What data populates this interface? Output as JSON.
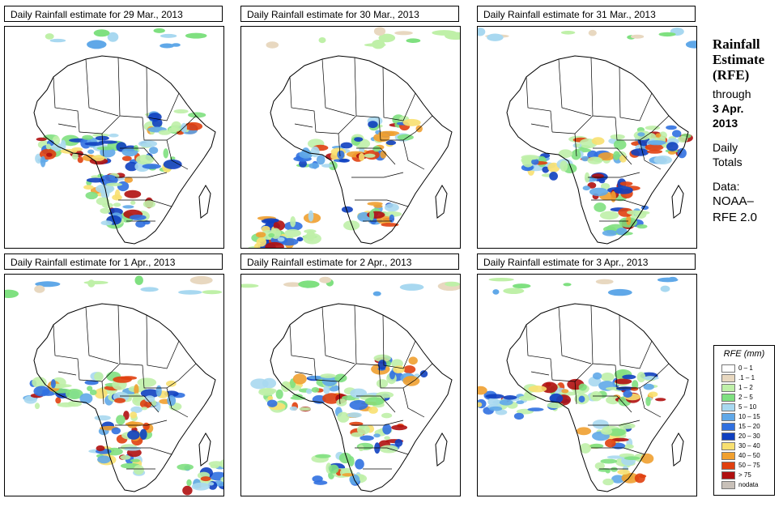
{
  "panels": [
    {
      "title": "Daily Rainfall estimate for  29 Mar., 2013"
    },
    {
      "title": "Daily Rainfall estimate for  30 Mar., 2013"
    },
    {
      "title": "Daily Rainfall estimate for  31 Mar., 2013"
    },
    {
      "title": "Daily Rainfall estimate for  1 Apr., 2013"
    },
    {
      "title": "Daily Rainfall estimate for  2 Apr., 2013"
    },
    {
      "title": "Daily Rainfall estimate for  3 Apr., 2013"
    }
  ],
  "side": {
    "title_1": "Rainfall",
    "title_2": "Estimate",
    "title_3": "(RFE)",
    "through": "through",
    "date_1": "3 Apr.",
    "date_2": "2013",
    "daily": "Daily",
    "totals": "Totals",
    "data_label": "Data:",
    "source_1": "NOAA–",
    "source_2": "RFE 2.0"
  },
  "legend": {
    "title": "RFE (mm)",
    "items": [
      {
        "label": "0 – 1",
        "color": "#ffffff"
      },
      {
        "label": ".1 – 1",
        "color": "#e8d8c0"
      },
      {
        "label": "1 – 2",
        "color": "#bff0a8"
      },
      {
        "label": "2 – 5",
        "color": "#7fe080"
      },
      {
        "label": "5 – 10",
        "color": "#a8d8f0"
      },
      {
        "label": "10 – 15",
        "color": "#60a8e8"
      },
      {
        "label": "15 – 20",
        "color": "#3070e0"
      },
      {
        "label": "20 – 30",
        "color": "#1040c0"
      },
      {
        "label": "30 – 40",
        "color": "#f8e070"
      },
      {
        "label": "40 – 50",
        "color": "#f0a030"
      },
      {
        "label": "50 – 75",
        "color": "#e04010"
      },
      {
        "label": "> 75",
        "color": "#b01010"
      },
      {
        "label": "nodata",
        "color": "#c8c0b8"
      }
    ]
  }
}
